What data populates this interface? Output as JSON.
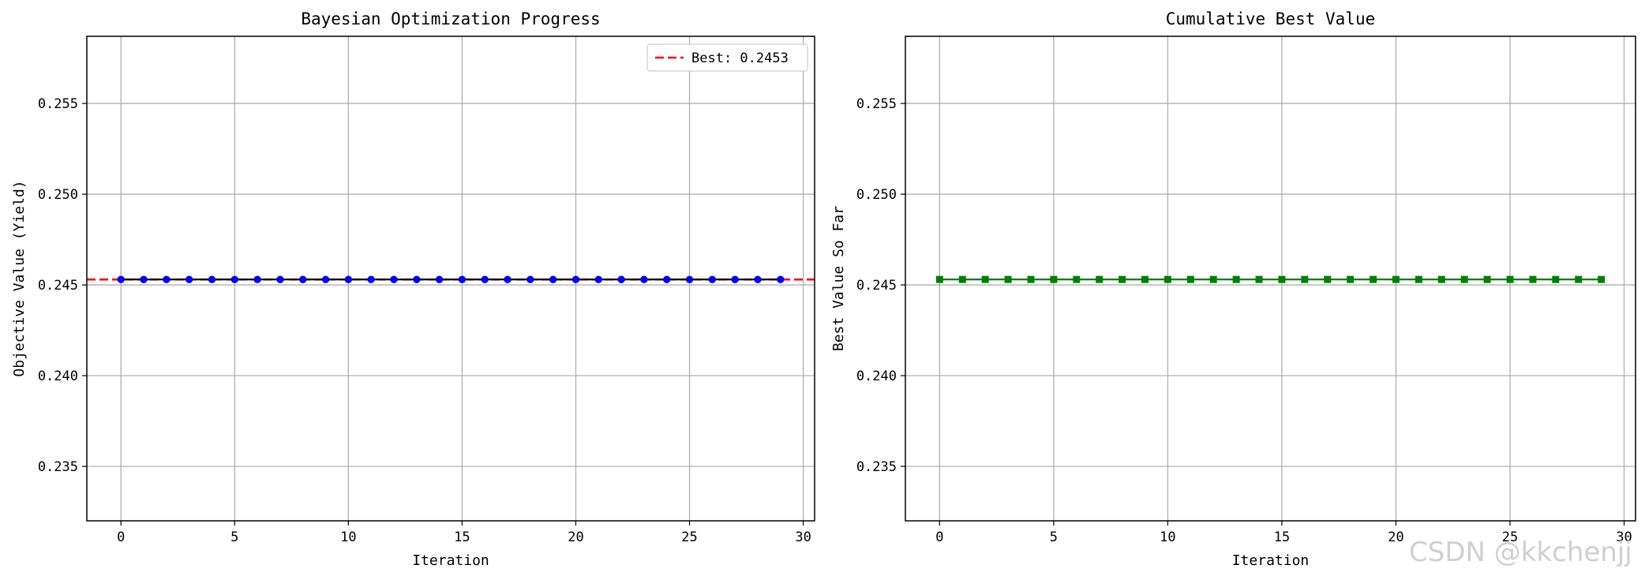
{
  "chart_data": [
    {
      "type": "line",
      "title": "Bayesian Optimization Progress",
      "xlabel": "Iteration",
      "ylabel": "Objective Value (Yield)",
      "xlim": [
        -1.5,
        30.5
      ],
      "ylim": [
        0.232,
        0.2587
      ],
      "xticks": [
        0,
        5,
        10,
        15,
        20,
        25,
        30
      ],
      "yticks": [
        0.235,
        0.24,
        0.245,
        0.25,
        0.255
      ],
      "ytick_labels": [
        "0.235",
        "0.240",
        "0.245",
        "0.250",
        "0.255"
      ],
      "grid": true,
      "legend": {
        "placement": "top-right",
        "entries": [
          "Best: 0.2453"
        ]
      },
      "series": [
        {
          "marker": "circle",
          "color": "#0000ff",
          "line_color": "#000000",
          "x": [
            0,
            1,
            2,
            3,
            4,
            5,
            6,
            7,
            8,
            9,
            10,
            11,
            12,
            13,
            14,
            15,
            16,
            17,
            18,
            19,
            20,
            21,
            22,
            23,
            24,
            25,
            26,
            27,
            28,
            29
          ],
          "y": [
            0.2453,
            0.2453,
            0.2453,
            0.2453,
            0.2453,
            0.2453,
            0.2453,
            0.2453,
            0.2453,
            0.2453,
            0.2453,
            0.2453,
            0.2453,
            0.2453,
            0.2453,
            0.2453,
            0.2453,
            0.2453,
            0.2453,
            0.2453,
            0.2453,
            0.2453,
            0.2453,
            0.2453,
            0.2453,
            0.2453,
            0.2453,
            0.2453,
            0.2453,
            0.2453
          ]
        }
      ],
      "hlines": [
        {
          "name": "Best: 0.2453",
          "y": 0.2453,
          "color": "#ff0000",
          "style": "dashed"
        }
      ]
    },
    {
      "type": "line",
      "title": "Cumulative Best Value",
      "xlabel": "Iteration",
      "ylabel": "Best Value So Far",
      "xlim": [
        -1.5,
        30.5
      ],
      "ylim": [
        0.232,
        0.2587
      ],
      "xticks": [
        0,
        5,
        10,
        15,
        20,
        25,
        30
      ],
      "yticks": [
        0.235,
        0.24,
        0.245,
        0.25,
        0.255
      ],
      "ytick_labels": [
        "0.235",
        "0.240",
        "0.245",
        "0.250",
        "0.255"
      ],
      "grid": true,
      "series": [
        {
          "marker": "square",
          "color": "#008000",
          "line_color": "#008000",
          "x": [
            0,
            1,
            2,
            3,
            4,
            5,
            6,
            7,
            8,
            9,
            10,
            11,
            12,
            13,
            14,
            15,
            16,
            17,
            18,
            19,
            20,
            21,
            22,
            23,
            24,
            25,
            26,
            27,
            28,
            29
          ],
          "y": [
            0.2453,
            0.2453,
            0.2453,
            0.2453,
            0.2453,
            0.2453,
            0.2453,
            0.2453,
            0.2453,
            0.2453,
            0.2453,
            0.2453,
            0.2453,
            0.2453,
            0.2453,
            0.2453,
            0.2453,
            0.2453,
            0.2453,
            0.2453,
            0.2453,
            0.2453,
            0.2453,
            0.2453,
            0.2453,
            0.2453,
            0.2453,
            0.2453,
            0.2453,
            0.2453
          ]
        }
      ]
    }
  ],
  "watermark": "CSDN @kkchenjj"
}
